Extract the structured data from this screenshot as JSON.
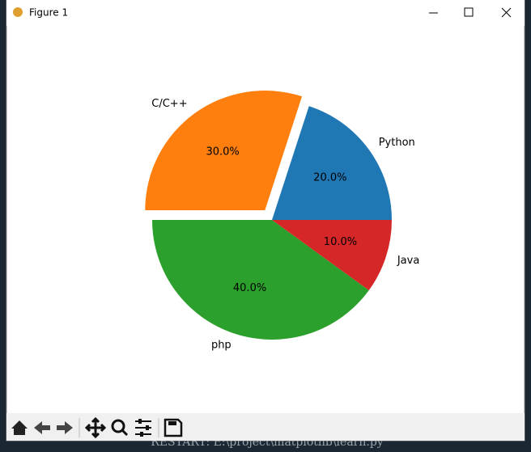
{
  "window_title": "Figure 1",
  "console_text": "RESTART: E:\\project\\matplotlib\\learn.py",
  "chart_data": {
    "type": "pie",
    "categories": [
      "Python",
      "C/C++",
      "php",
      "Java"
    ],
    "values": [
      20,
      30,
      40,
      10
    ],
    "value_labels": [
      "20.0%",
      "30.0%",
      "40.0%",
      "10.0%"
    ],
    "colors": [
      "#1f77b4",
      "#ff7f0e",
      "#2ca02c",
      "#d62728"
    ],
    "explode": [
      0,
      0.1,
      0,
      0
    ]
  }
}
